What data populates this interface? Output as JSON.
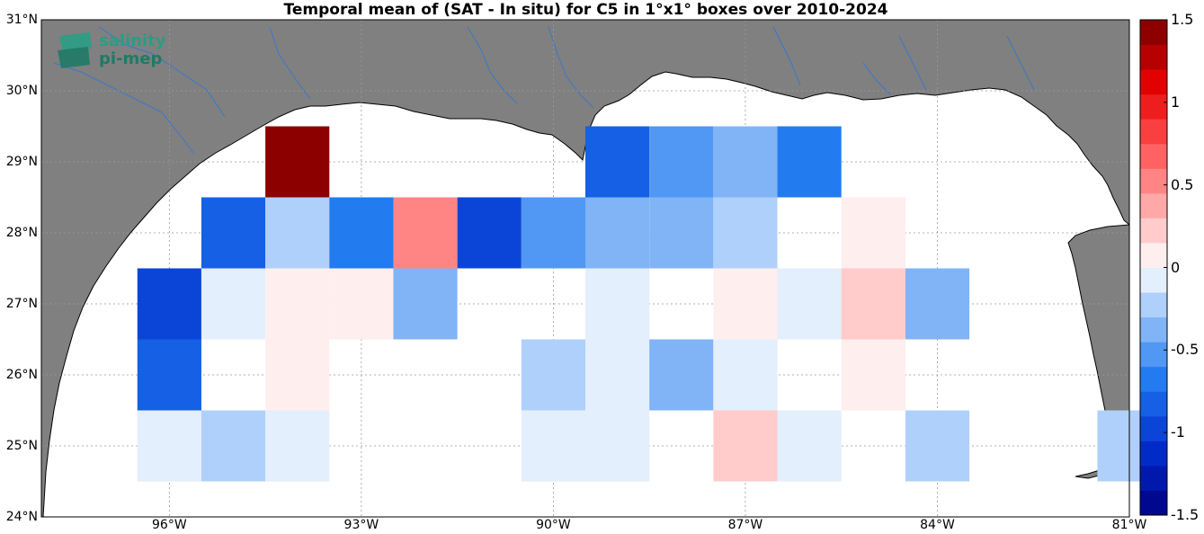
{
  "title": "Temporal mean of (SAT - In situ) for C5 in 1°x1° boxes over 2010-2024",
  "logo": {
    "line1": "salinity",
    "line2": "pi-mep",
    "color": "#2a9d83"
  },
  "colors": {
    "land": "#808080",
    "ocean": "#ffffff",
    "river": "#3a78c8"
  },
  "lat_ticks": [
    {
      "value": 31,
      "label": "31°N"
    },
    {
      "value": 30,
      "label": "30°N"
    },
    {
      "value": 29,
      "label": "29°N"
    },
    {
      "value": 28,
      "label": "28°N"
    },
    {
      "value": 27,
      "label": "27°N"
    },
    {
      "value": 26,
      "label": "26°N"
    },
    {
      "value": 25,
      "label": "25°N"
    },
    {
      "value": 24,
      "label": "24°N"
    }
  ],
  "lon_ticks": [
    {
      "value": -96,
      "label": "96°W"
    },
    {
      "value": -93,
      "label": "93°W"
    },
    {
      "value": -90,
      "label": "90°W"
    },
    {
      "value": -87,
      "label": "87°W"
    },
    {
      "value": -84,
      "label": "84°W"
    },
    {
      "value": -81,
      "label": "81°W"
    }
  ],
  "colorbar": {
    "range": [
      -1.5,
      1.5
    ],
    "labels": [
      "1.5",
      "1",
      "0.5",
      "0",
      "-0.5",
      "-1",
      "-1.5"
    ],
    "label_values": [
      1.5,
      1,
      0.5,
      0,
      -0.5,
      -1,
      -1.5
    ]
  },
  "chart_data": {
    "type": "heatmap",
    "title": "Temporal mean of (SAT - In situ) for C5 in 1°x1° boxes over 2010-2024",
    "x_axis": "longitude",
    "y_axis": "latitude",
    "xlim": [
      -98,
      -81
    ],
    "ylim": [
      24,
      31
    ],
    "cells": [
      {
        "lon": -94,
        "lat": 29,
        "value": 1.5
      },
      {
        "lon": -89,
        "lat": 29,
        "value": -0.8
      },
      {
        "lon": -88,
        "lat": 29,
        "value": -0.55
      },
      {
        "lon": -87,
        "lat": 29,
        "value": -0.45
      },
      {
        "lon": -86,
        "lat": 29,
        "value": -0.65
      },
      {
        "lon": -95,
        "lat": 28,
        "value": -0.8
      },
      {
        "lon": -94,
        "lat": 28,
        "value": -0.2
      },
      {
        "lon": -93,
        "lat": 28,
        "value": -0.65
      },
      {
        "lon": -92,
        "lat": 28,
        "value": 0.55
      },
      {
        "lon": -91,
        "lat": 28,
        "value": -0.95
      },
      {
        "lon": -90,
        "lat": 28,
        "value": -0.55
      },
      {
        "lon": -89,
        "lat": 28,
        "value": -0.35
      },
      {
        "lon": -88,
        "lat": 28,
        "value": -0.45
      },
      {
        "lon": -87,
        "lat": 28,
        "value": -0.2
      },
      {
        "lon": -85,
        "lat": 28,
        "value": 0.12
      },
      {
        "lon": -96,
        "lat": 27,
        "value": -1.05
      },
      {
        "lon": -95,
        "lat": 27,
        "value": -0.1
      },
      {
        "lon": -94,
        "lat": 27,
        "value": 0.12
      },
      {
        "lon": -93,
        "lat": 27,
        "value": 0.12
      },
      {
        "lon": -92,
        "lat": 27,
        "value": -0.45
      },
      {
        "lon": -89,
        "lat": 27,
        "value": -0.1
      },
      {
        "lon": -87,
        "lat": 27,
        "value": 0.12
      },
      {
        "lon": -86,
        "lat": 27,
        "value": -0.1
      },
      {
        "lon": -85,
        "lat": 27,
        "value": 0.25
      },
      {
        "lon": -84,
        "lat": 27,
        "value": -0.4
      },
      {
        "lon": -96,
        "lat": 26,
        "value": -0.8
      },
      {
        "lon": -94,
        "lat": 26,
        "value": 0.12
      },
      {
        "lon": -90,
        "lat": 26,
        "value": -0.2
      },
      {
        "lon": -89,
        "lat": 26,
        "value": -0.1
      },
      {
        "lon": -88,
        "lat": 26,
        "value": -0.35
      },
      {
        "lon": -87,
        "lat": 26,
        "value": -0.1
      },
      {
        "lon": -85,
        "lat": 26,
        "value": 0.12
      },
      {
        "lon": -96,
        "lat": 25,
        "value": -0.1
      },
      {
        "lon": -95,
        "lat": 25,
        "value": -0.2
      },
      {
        "lon": -94,
        "lat": 25,
        "value": -0.1
      },
      {
        "lon": -90,
        "lat": 25,
        "value": -0.1
      },
      {
        "lon": -89,
        "lat": 25,
        "value": -0.1
      },
      {
        "lon": -87,
        "lat": 25,
        "value": 0.25
      },
      {
        "lon": -86,
        "lat": 25,
        "value": -0.1
      },
      {
        "lon": -84,
        "lat": 25,
        "value": -0.2
      },
      {
        "lon": -81,
        "lat": 25,
        "value": -0.2
      }
    ]
  }
}
